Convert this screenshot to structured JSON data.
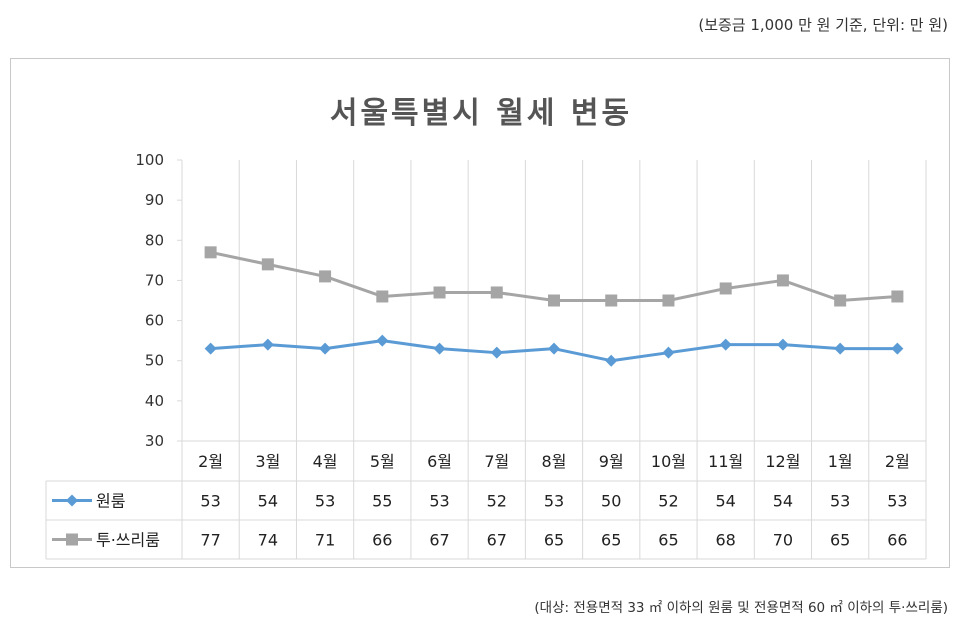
{
  "header": {
    "note": "(보증금 1,000 만 원 기준, 단위: 만 원)"
  },
  "footer": {
    "note": "(대상: 전용면적 33 ㎡ 이하의 원룸 및 전용면적 60 ㎡ 이하의 투·쓰리룸)"
  },
  "chart_data": {
    "type": "line",
    "title": "서울특별시 월세 변동",
    "categories": [
      "2월",
      "3월",
      "4월",
      "5월",
      "6월",
      "7월",
      "8월",
      "9월",
      "10월",
      "11월",
      "12월",
      "1월",
      "2월"
    ],
    "series": [
      {
        "name": "원룸",
        "values": [
          53,
          54,
          53,
          55,
          53,
          52,
          53,
          50,
          52,
          54,
          54,
          53,
          53
        ],
        "color": "#5b9bd5",
        "marker": "diamond"
      },
      {
        "name": "투·쓰리룸",
        "values": [
          77,
          74,
          71,
          66,
          67,
          67,
          65,
          65,
          65,
          68,
          70,
          65,
          66
        ],
        "color": "#a5a5a5",
        "marker": "square"
      }
    ],
    "ylim": [
      30,
      100
    ],
    "yticks": [
      30,
      40,
      50,
      60,
      70,
      80,
      90,
      100
    ],
    "grid": "vertical",
    "data_table": true
  }
}
